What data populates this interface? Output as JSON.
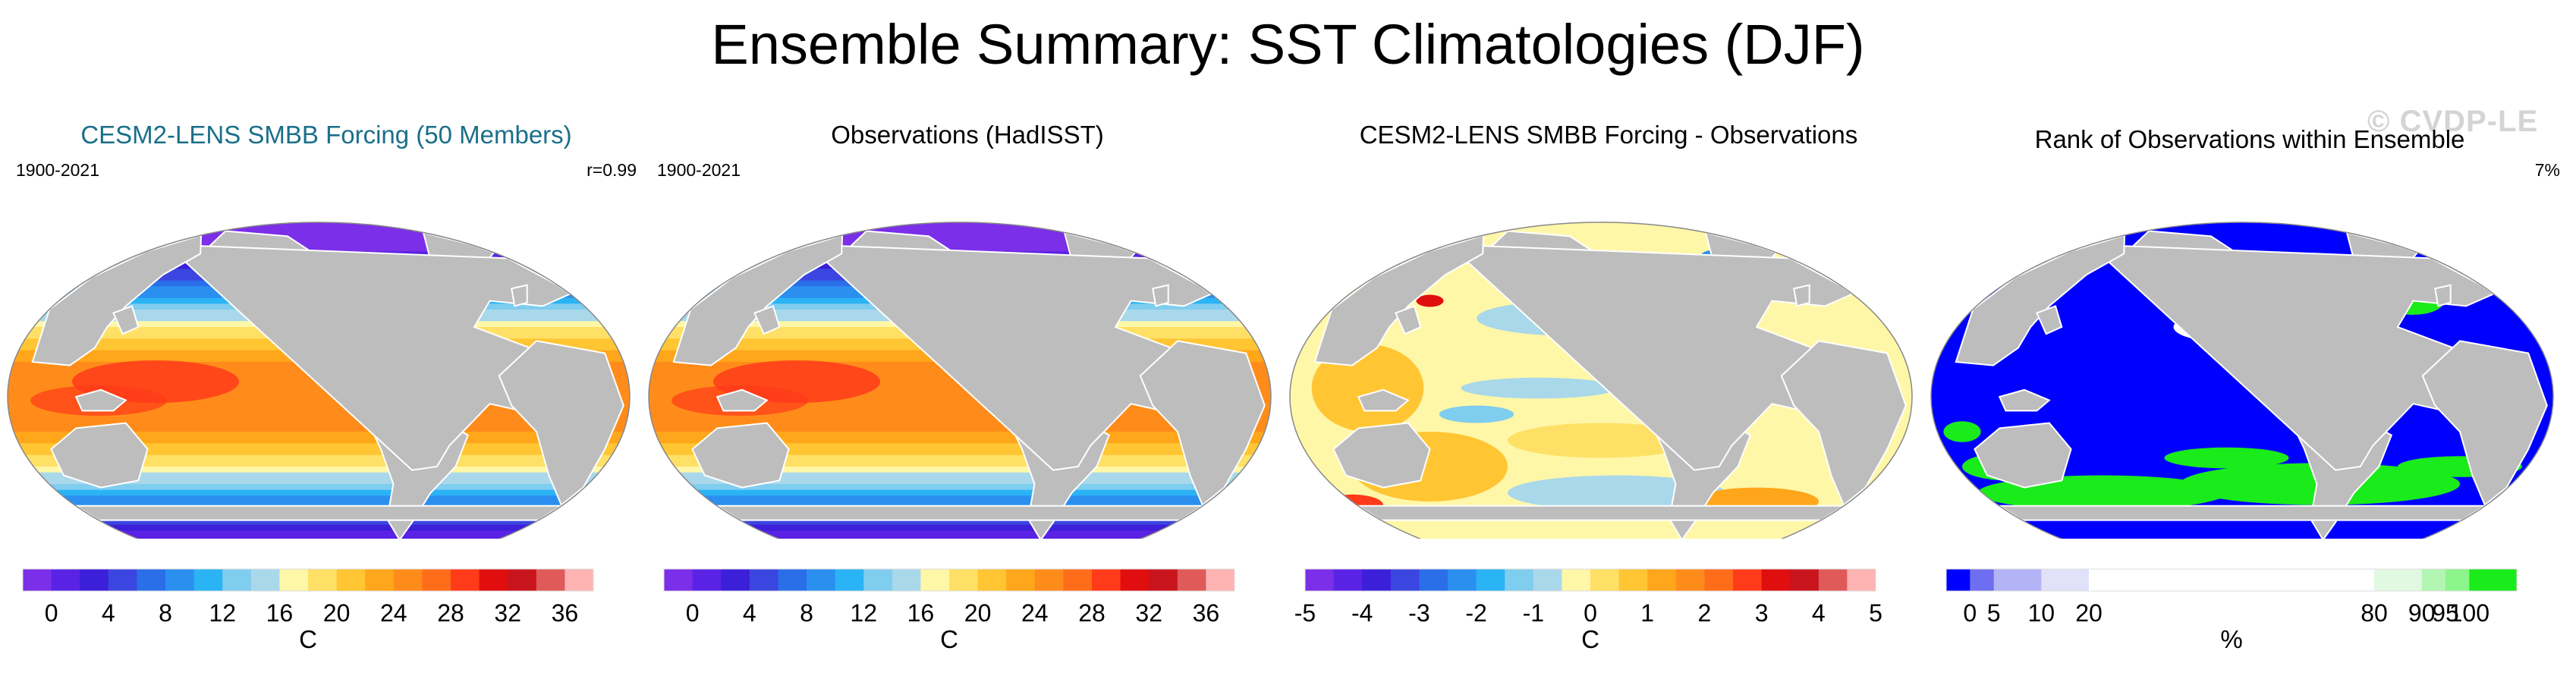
{
  "figure": {
    "title": "Ensemble Summary: SST Climatologies (DJF)",
    "watermark": "© CVDP-LE"
  },
  "colors": {
    "land": "#bdbdbd",
    "ocean_outline": "#888888",
    "title_teal": "#1a6f8a"
  },
  "chart_data": [
    {
      "type": "heatmap",
      "title": "CESM2-LENS SMBB Forcing (50 Members)",
      "period": "1900-2021",
      "stat": "r=0.99",
      "map": "sst",
      "colorbar": {
        "colors": [
          "#7b2fe8",
          "#5a22e4",
          "#3c1fd8",
          "#3b45e0",
          "#2a6ee8",
          "#2b8ff0",
          "#2ab3f5",
          "#7fcdef",
          "#a9d8ea",
          "#fff7a8",
          "#ffe066",
          "#ffc533",
          "#ffa61a",
          "#ff8c1a",
          "#ff6d1a",
          "#ff3b1a",
          "#e00e0e",
          "#c8141c",
          "#e05a5a",
          "#ffb3b3"
        ],
        "ticks": [
          "0",
          "4",
          "8",
          "12",
          "16",
          "20",
          "24",
          "28",
          "32",
          "36"
        ],
        "tick_positions": [
          1,
          3,
          5,
          7,
          9,
          11,
          13,
          15,
          17,
          19
        ],
        "label": "C"
      }
    },
    {
      "type": "heatmap",
      "title": "Observations (HadISST)",
      "period": "1900-2021",
      "stat": "",
      "map": "sst",
      "colorbar": {
        "colors": [
          "#7b2fe8",
          "#5a22e4",
          "#3c1fd8",
          "#3b45e0",
          "#2a6ee8",
          "#2b8ff0",
          "#2ab3f5",
          "#7fcdef",
          "#a9d8ea",
          "#fff7a8",
          "#ffe066",
          "#ffc533",
          "#ffa61a",
          "#ff8c1a",
          "#ff6d1a",
          "#ff3b1a",
          "#e00e0e",
          "#c8141c",
          "#e05a5a",
          "#ffb3b3"
        ],
        "ticks": [
          "0",
          "4",
          "8",
          "12",
          "16",
          "20",
          "24",
          "28",
          "32",
          "36"
        ],
        "tick_positions": [
          1,
          3,
          5,
          7,
          9,
          11,
          13,
          15,
          17,
          19
        ],
        "label": "C"
      }
    },
    {
      "type": "heatmap",
      "title": "CESM2-LENS SMBB Forcing - Observations",
      "period": "",
      "stat": "",
      "map": "diff",
      "colorbar": {
        "colors": [
          "#7b2fe8",
          "#5a22e4",
          "#3c1fd8",
          "#3b45e0",
          "#2a6ee8",
          "#2b8ff0",
          "#2ab3f5",
          "#7fcdef",
          "#a9d8ea",
          "#fff7a8",
          "#ffe066",
          "#ffc533",
          "#ffa61a",
          "#ff8c1a",
          "#ff6d1a",
          "#ff3b1a",
          "#e00e0e",
          "#c8141c",
          "#e05a5a",
          "#ffb3b3"
        ],
        "ticks": [
          "-5",
          "-4",
          "-3",
          "-2",
          "-1",
          "0",
          "1",
          "2",
          "3",
          "4",
          "5"
        ],
        "tick_positions": [
          0,
          2,
          4,
          6,
          8,
          10,
          12,
          14,
          16,
          18,
          20
        ],
        "label": "C"
      }
    },
    {
      "type": "heatmap",
      "title": "Rank of Observations within Ensemble",
      "period": "",
      "stat": "7%",
      "map": "rank",
      "colorbar": {
        "colors": [
          "#0000ff",
          "#6e6ef0",
          "#b3b3f5",
          "#e1e1f9",
          "#ffffff",
          "#e1f9e1",
          "#b3f5b3",
          "#8bf58b",
          "#1aeb1a"
        ],
        "widths": [
          5,
          5,
          10,
          10,
          60,
          10,
          5,
          5,
          10
        ],
        "ticks": [
          "0",
          "5",
          "10",
          "20",
          "80",
          "90",
          "95",
          "100"
        ],
        "tick_positions": [
          5,
          10,
          20,
          30,
          90,
          100,
          105,
          110
        ],
        "total": 120,
        "label": "%"
      }
    }
  ]
}
